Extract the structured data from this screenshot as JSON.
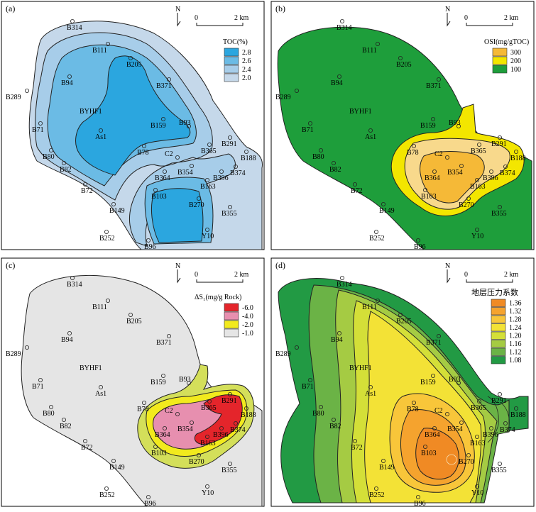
{
  "panels": [
    {
      "tag": "(a)",
      "legend_title": "TOC(%)",
      "legend_items": [
        {
          "label": "2.8",
          "color": "#2BA6DF"
        },
        {
          "label": "2.6",
          "color": "#6BBBE5"
        },
        {
          "label": "2.4",
          "color": "#A7CDE9"
        },
        {
          "label": "2.0",
          "color": "#C5D8EA"
        }
      ]
    },
    {
      "tag": "(b)",
      "legend_title": "OSI(mg/gTOC)",
      "legend_items": [
        {
          "label": "300",
          "color": "#F5B937"
        },
        {
          "label": "200",
          "color": "#F3E600"
        },
        {
          "label": "100",
          "color": "#1E9E3B"
        }
      ]
    },
    {
      "tag": "(c)",
      "legend_title": "ΔS₁(mg/g Rock)",
      "legend_items": [
        {
          "label": "-6.0",
          "color": "#E4252B"
        },
        {
          "label": "-4.0",
          "color": "#E78FAF"
        },
        {
          "label": "-2.0",
          "color": "#F2EA1D"
        },
        {
          "label": "-1.0",
          "color": "#E5E5E5"
        }
      ]
    },
    {
      "tag": "(d)",
      "legend_title": "地层压力系数",
      "legend_items": [
        {
          "label": "1.36",
          "color": "#F08A24"
        },
        {
          "label": "1.32",
          "color": "#F5A32E"
        },
        {
          "label": "1.28",
          "color": "#F8C63A"
        },
        {
          "label": "1.24",
          "color": "#F3E236"
        },
        {
          "label": "1.20",
          "color": "#D4DF38"
        },
        {
          "label": "1.16",
          "color": "#A5CB43"
        },
        {
          "label": "1.12",
          "color": "#6BB346"
        },
        {
          "label": "1.08",
          "color": "#229A44"
        }
      ]
    }
  ],
  "scale_bar": {
    "start": "0",
    "end": "2 km"
  },
  "north_label": "N",
  "wells": [
    "B314",
    "B111",
    "B205",
    "B94",
    "B289",
    "B371",
    "B71",
    "BYHF1",
    "As1",
    "B159",
    "B93",
    "B78",
    "B80",
    "B82",
    "B365",
    "C2",
    "B291",
    "B188",
    "B354",
    "B364",
    "B396",
    "B374",
    "B163",
    "B72",
    "B103",
    "B270",
    "B149",
    "B355",
    "B252",
    "Y10",
    "B96"
  ]
}
